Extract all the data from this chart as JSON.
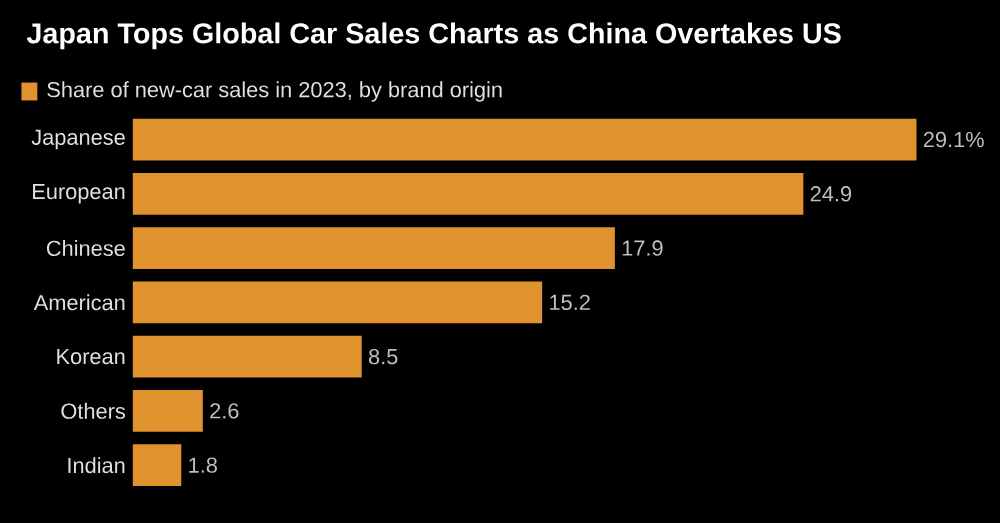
{
  "chart_data": {
    "type": "bar",
    "orientation": "horizontal",
    "title": "Japan Tops Global Car Sales Charts as China Overtakes US",
    "categories": [
      "Japanese",
      "European",
      "Chinese",
      "American",
      "Korean",
      "Others",
      "Indian"
    ],
    "series": [
      {
        "name": "Share of new-car sales in 2023, by brand origin",
        "color": "#e0922f",
        "values": [
          29.1,
          24.9,
          17.9,
          15.2,
          8.5,
          2.6,
          1.8
        ],
        "value_labels": [
          "29.1%",
          "24.9",
          "17.9",
          "15.2",
          "8.5",
          "2.6",
          "1.8"
        ]
      }
    ],
    "legend": "top left"
  }
}
